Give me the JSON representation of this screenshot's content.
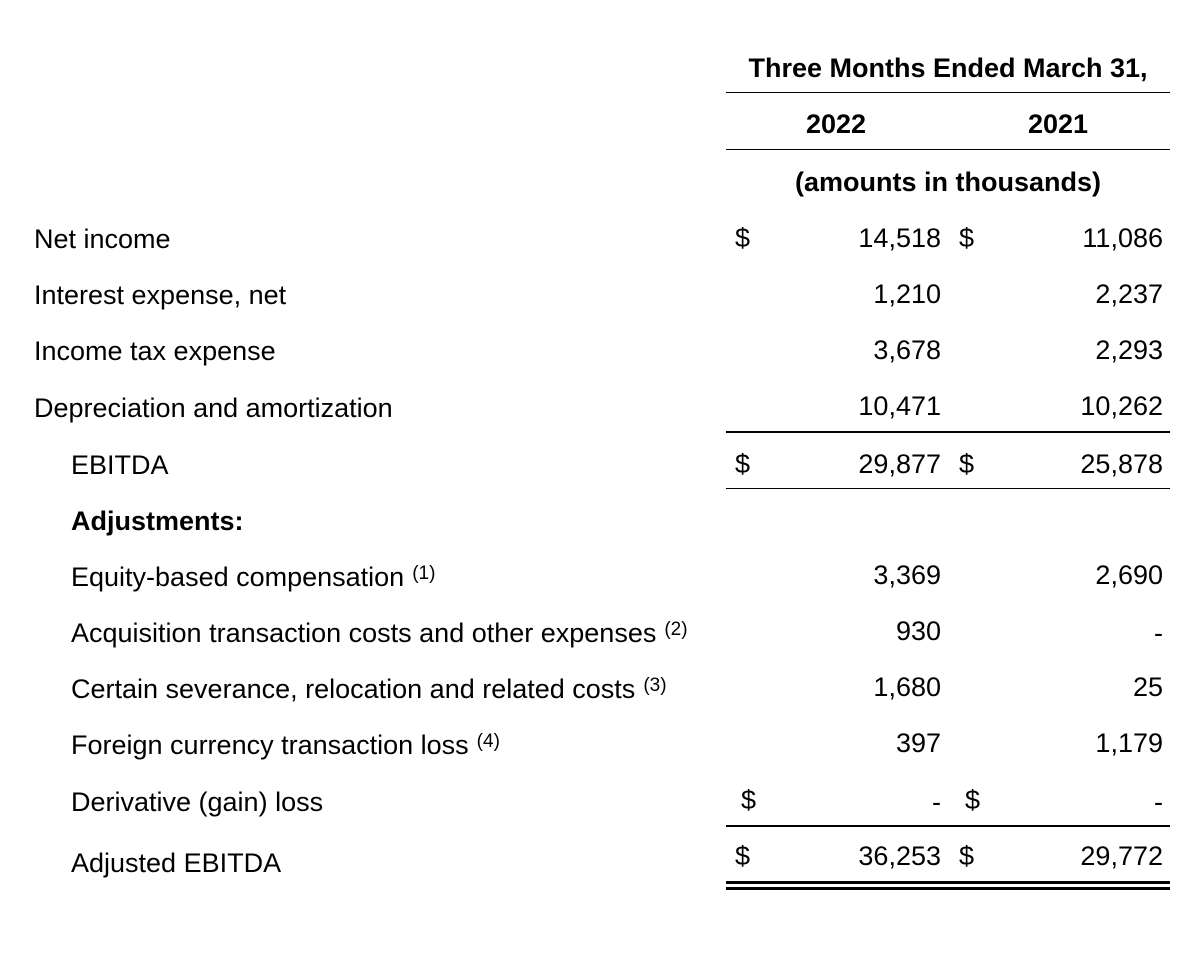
{
  "header": {
    "period": "Three Months Ended March 31,",
    "col1_year": "2022",
    "col2_year": "2021",
    "units": "(amounts in thousands)"
  },
  "currency_symbol": "$",
  "rows": [
    {
      "label": "Net income",
      "v2022": "14,518",
      "v2021": "11,086"
    },
    {
      "label": "Interest expense, net",
      "v2022": "1,210",
      "v2021": "2,237"
    },
    {
      "label": "Income tax expense",
      "v2022": "3,678",
      "v2021": "2,293"
    },
    {
      "label": "Depreciation and amortization",
      "v2022": "10,471",
      "v2021": "10,262"
    },
    {
      "label": "EBITDA",
      "v2022": "29,877",
      "v2021": "25,878"
    },
    {
      "label": "Adjustments:"
    },
    {
      "label": "Equity-based compensation",
      "note": "(1)",
      "v2022": "3,369",
      "v2021": "2,690"
    },
    {
      "label": "Acquisition transaction costs and other expenses",
      "note": "(2)",
      "v2022": "930",
      "v2021": "-"
    },
    {
      "label": "Certain severance, relocation and related costs",
      "note": "(3)",
      "v2022": "1,680",
      "v2021": "25"
    },
    {
      "label": "Foreign currency transaction loss",
      "note": "(4)",
      "v2022": "397",
      "v2021": "1,179"
    },
    {
      "label": "Derivative (gain) loss",
      "v2022": "-",
      "v2021": "-"
    },
    {
      "label": "Adjusted EBITDA",
      "v2022": "36,253",
      "v2021": "29,772"
    }
  ]
}
